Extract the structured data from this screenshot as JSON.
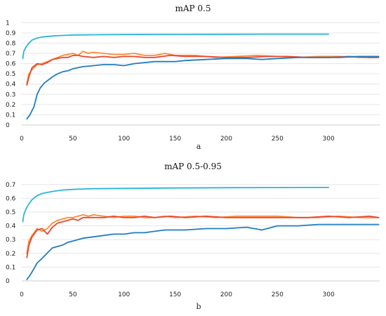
{
  "chart_data": [
    {
      "type": "line",
      "title": "mAP 0.5",
      "caption": "a",
      "xlim": [
        0,
        350
      ],
      "ylim": [
        0,
        1.05
      ],
      "x_ticks": [
        "0",
        "50",
        "100",
        "150",
        "200",
        "250",
        "300"
      ],
      "y_ticks": [
        "0",
        "0.1",
        "0.2",
        "0.3",
        "0.4",
        "0.5",
        "0.6",
        "0.7",
        "0.8",
        "0.9",
        "1"
      ],
      "grid": "horizontal",
      "series": [
        {
          "color": "#29b6d9",
          "x": [
            1,
            2,
            4,
            7,
            10,
            15,
            20,
            30,
            40,
            50,
            70,
            100,
            150,
            200,
            250,
            300
          ],
          "y": [
            0.65,
            0.72,
            0.76,
            0.8,
            0.83,
            0.85,
            0.86,
            0.87,
            0.875,
            0.88,
            0.882,
            0.884,
            0.886,
            0.887,
            0.888,
            0.888
          ]
        },
        {
          "color": "#ff8a33",
          "x": [
            5,
            7,
            10,
            15,
            20,
            25,
            30,
            35,
            40,
            45,
            50,
            55,
            60,
            65,
            70,
            80,
            90,
            100,
            110,
            120,
            130,
            140,
            150,
            170,
            190,
            210,
            230,
            250,
            270,
            290,
            310,
            330,
            349
          ],
          "y": [
            0.41,
            0.5,
            0.54,
            0.59,
            0.6,
            0.62,
            0.64,
            0.66,
            0.68,
            0.69,
            0.7,
            0.68,
            0.72,
            0.7,
            0.71,
            0.7,
            0.69,
            0.69,
            0.7,
            0.68,
            0.68,
            0.7,
            0.68,
            0.68,
            0.66,
            0.67,
            0.68,
            0.67,
            0.66,
            0.67,
            0.67,
            0.66,
            0.66
          ]
        },
        {
          "color": "#e8482e",
          "x": [
            5,
            7,
            10,
            15,
            20,
            25,
            30,
            35,
            40,
            45,
            50,
            55,
            60,
            70,
            80,
            90,
            100,
            110,
            120,
            130,
            145,
            160,
            180,
            200,
            220,
            240,
            260,
            280,
            300,
            320,
            340,
            349
          ],
          "y": [
            0.39,
            0.47,
            0.56,
            0.6,
            0.59,
            0.61,
            0.64,
            0.65,
            0.66,
            0.66,
            0.68,
            0.68,
            0.67,
            0.66,
            0.67,
            0.66,
            0.67,
            0.67,
            0.66,
            0.66,
            0.68,
            0.67,
            0.67,
            0.66,
            0.66,
            0.67,
            0.67,
            0.66,
            0.66,
            0.67,
            0.66,
            0.66
          ]
        },
        {
          "color": "#1f7dc2",
          "x": [
            5,
            8,
            12,
            15,
            18,
            22,
            26,
            30,
            35,
            40,
            45,
            50,
            55,
            60,
            70,
            80,
            90,
            100,
            110,
            120,
            130,
            140,
            150,
            160,
            180,
            200,
            220,
            235,
            250,
            270,
            290,
            310,
            330,
            349
          ],
          "y": [
            0.06,
            0.1,
            0.18,
            0.3,
            0.36,
            0.41,
            0.44,
            0.47,
            0.5,
            0.52,
            0.53,
            0.55,
            0.56,
            0.57,
            0.58,
            0.59,
            0.59,
            0.58,
            0.6,
            0.61,
            0.62,
            0.62,
            0.62,
            0.63,
            0.64,
            0.65,
            0.65,
            0.64,
            0.65,
            0.66,
            0.66,
            0.66,
            0.67,
            0.67
          ]
        }
      ]
    },
    {
      "type": "line",
      "title": "mAP 0.5-0.95",
      "caption": "b",
      "xlim": [
        0,
        350
      ],
      "ylim": [
        0,
        0.75
      ],
      "x_ticks": [
        "0",
        "50",
        "100",
        "150",
        "200",
        "250",
        "300"
      ],
      "y_ticks": [
        "0",
        "0.1",
        "0.2",
        "0.3",
        "0.4",
        "0.5",
        "0.6",
        "0.7"
      ],
      "grid": "horizontal",
      "series": [
        {
          "color": "#29b6d9",
          "x": [
            1,
            2,
            4,
            7,
            10,
            15,
            20,
            30,
            40,
            50,
            70,
            100,
            150,
            200,
            250,
            300
          ],
          "y": [
            0.43,
            0.48,
            0.52,
            0.56,
            0.59,
            0.62,
            0.635,
            0.65,
            0.66,
            0.665,
            0.67,
            0.672,
            0.675,
            0.677,
            0.678,
            0.679
          ]
        },
        {
          "color": "#ff8a33",
          "x": [
            5,
            7,
            10,
            15,
            20,
            25,
            30,
            35,
            40,
            45,
            50,
            55,
            60,
            65,
            70,
            80,
            90,
            100,
            110,
            120,
            130,
            140,
            150,
            170,
            190,
            210,
            230,
            250,
            270,
            290,
            310,
            330,
            349
          ],
          "y": [
            0.2,
            0.29,
            0.33,
            0.38,
            0.36,
            0.38,
            0.42,
            0.44,
            0.45,
            0.46,
            0.46,
            0.47,
            0.48,
            0.47,
            0.48,
            0.47,
            0.46,
            0.47,
            0.47,
            0.46,
            0.46,
            0.47,
            0.46,
            0.47,
            0.46,
            0.47,
            0.47,
            0.47,
            0.46,
            0.46,
            0.47,
            0.46,
            0.46
          ]
        },
        {
          "color": "#e8482e",
          "x": [
            5,
            7,
            10,
            15,
            20,
            25,
            30,
            35,
            40,
            45,
            50,
            55,
            60,
            70,
            80,
            90,
            100,
            110,
            120,
            130,
            145,
            160,
            180,
            200,
            220,
            240,
            260,
            280,
            300,
            320,
            340,
            349
          ],
          "y": [
            0.17,
            0.26,
            0.32,
            0.37,
            0.38,
            0.34,
            0.39,
            0.42,
            0.43,
            0.44,
            0.45,
            0.44,
            0.46,
            0.46,
            0.46,
            0.47,
            0.46,
            0.46,
            0.47,
            0.46,
            0.47,
            0.46,
            0.47,
            0.46,
            0.46,
            0.46,
            0.46,
            0.46,
            0.47,
            0.46,
            0.47,
            0.46
          ]
        },
        {
          "color": "#1f7dc2",
          "x": [
            5,
            8,
            12,
            15,
            18,
            22,
            26,
            30,
            35,
            40,
            45,
            50,
            55,
            60,
            70,
            80,
            90,
            100,
            110,
            120,
            130,
            140,
            150,
            160,
            180,
            200,
            220,
            235,
            250,
            270,
            290,
            310,
            330,
            349
          ],
          "y": [
            0.01,
            0.04,
            0.09,
            0.13,
            0.15,
            0.18,
            0.21,
            0.24,
            0.25,
            0.26,
            0.28,
            0.29,
            0.3,
            0.31,
            0.32,
            0.33,
            0.34,
            0.34,
            0.35,
            0.35,
            0.36,
            0.37,
            0.37,
            0.37,
            0.38,
            0.38,
            0.39,
            0.37,
            0.4,
            0.4,
            0.41,
            0.41,
            0.41,
            0.41
          ]
        }
      ]
    }
  ]
}
